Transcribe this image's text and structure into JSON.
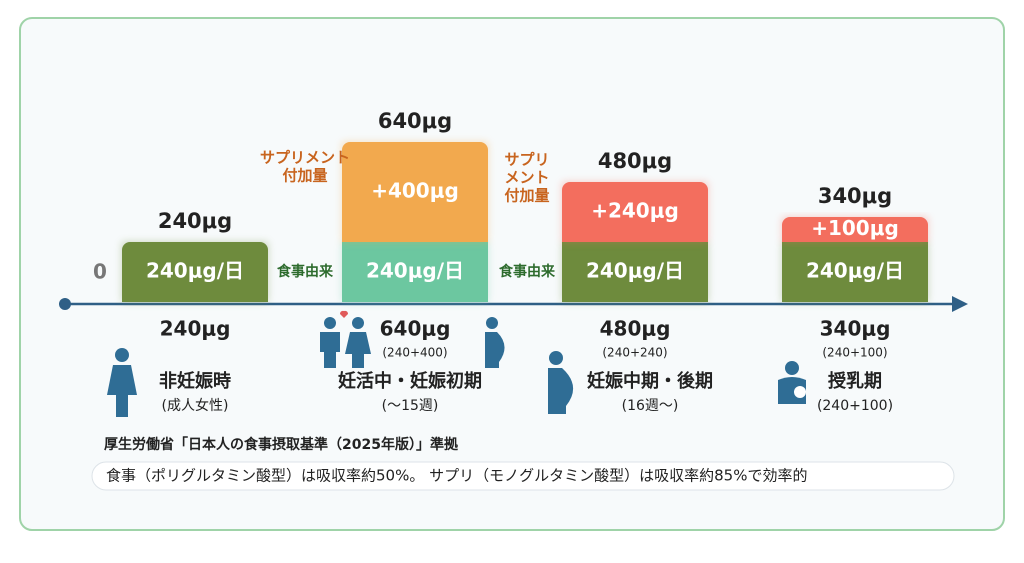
{
  "axis_zero": "0",
  "groups": [
    {
      "top": "240μg",
      "segments": [
        {
          "value": 240,
          "label": "240μg/日",
          "color": "#6e8b3d"
        }
      ],
      "total": "240μg",
      "name": "非妊娠時",
      "sub": "(成人女性)"
    },
    {
      "top": "640μg",
      "segments": [
        {
          "value": 240,
          "label": "240μg/日",
          "color": "#6cc7a0"
        },
        {
          "value": 400,
          "label": "+400μg",
          "color": "#f2a94e"
        }
      ],
      "total": "640μg",
      "breakdown": "(240+400)",
      "name": "妊活中・妊娠初期",
      "sub": "(〜15週)"
    },
    {
      "top": "480μg",
      "segments": [
        {
          "value": 240,
          "label": "240μg/日",
          "color": "#6e8b3d"
        },
        {
          "value": 240,
          "label": "+240μg",
          "color": "#f36e5e"
        }
      ],
      "total": "480μg",
      "breakdown": "(240+240)",
      "name": "妊娠中期・後期",
      "sub": "(16週〜)"
    },
    {
      "top": "340μg",
      "segments": [
        {
          "value": 240,
          "label": "240μg/日",
          "color": "#6e8b3d"
        },
        {
          "value": 100,
          "label": "+100μg",
          "color": "#f36e5e"
        }
      ],
      "total": "340μg",
      "breakdown": "(240+100)",
      "name": "授乳期",
      "sub": "(240+100)"
    }
  ],
  "gaps": [
    {
      "supplement": [
        "サプリメント",
        "付加量"
      ],
      "food": "食事由来"
    },
    {
      "supplement": [
        "サプリ",
        "メント",
        "付加量"
      ],
      "food": "食事由来"
    }
  ],
  "source": "厚生労働省「日本人の食事摂取基準（2025年版）」準拠",
  "note": "食事（ポリグルタミン酸型）は吸収率約50%。 サプリ（モノグルタミン酸型）は吸収率約85%で効率的"
}
